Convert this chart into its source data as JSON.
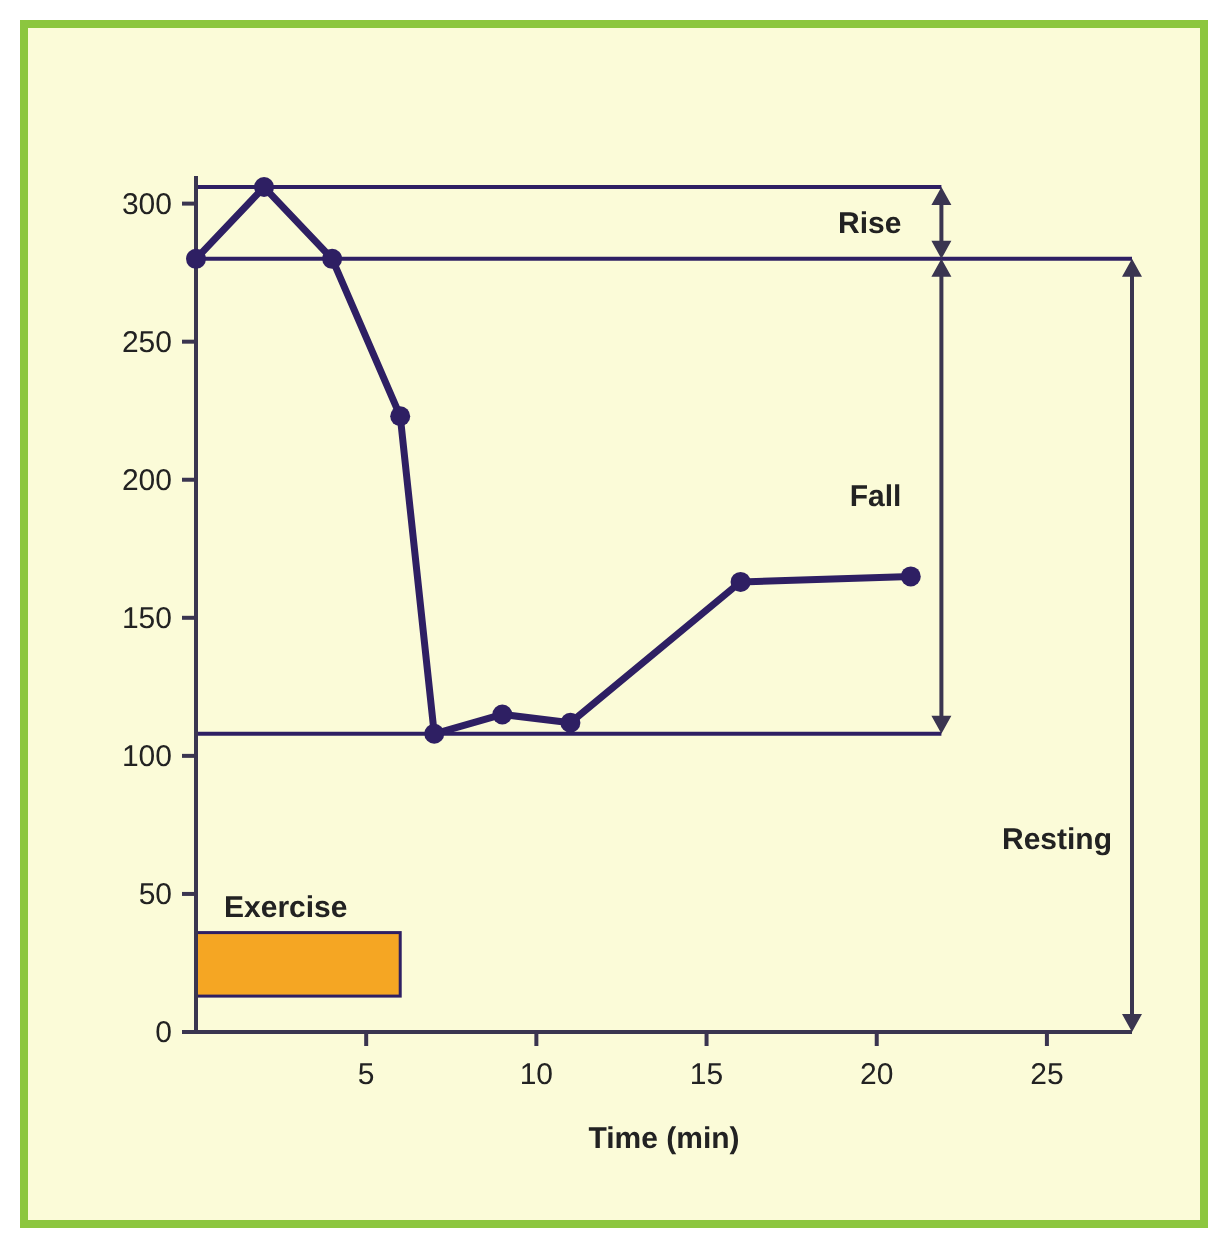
{
  "chart_data": {
    "type": "line",
    "xlabel": "Time (min)",
    "x": [
      0,
      2,
      4,
      6,
      7,
      9,
      11,
      16,
      21
    ],
    "series": [
      {
        "color": "#2e1f63",
        "values": [
          280,
          306,
          280,
          223,
          108,
          115,
          112,
          163,
          165
        ]
      }
    ],
    "xlim": [
      0,
      27.5
    ],
    "ylim": [
      0,
      310
    ],
    "xticks": [
      5,
      10,
      15,
      20,
      25
    ],
    "yticks": [
      0,
      50,
      100,
      150,
      200,
      250,
      300
    ],
    "grid": false,
    "marker": "circle",
    "line_style": "solid",
    "ref_lines": [
      {
        "axis": "y",
        "value": 306
      },
      {
        "axis": "y",
        "value": 280
      },
      {
        "axis": "y",
        "value": 108
      }
    ],
    "bands": [
      {
        "axis": "x",
        "from": 0,
        "to": 6,
        "label": "Exercise",
        "color": "#f5a623"
      }
    ],
    "annotations": [
      "Rise",
      "Fall",
      "Resting"
    ]
  }
}
